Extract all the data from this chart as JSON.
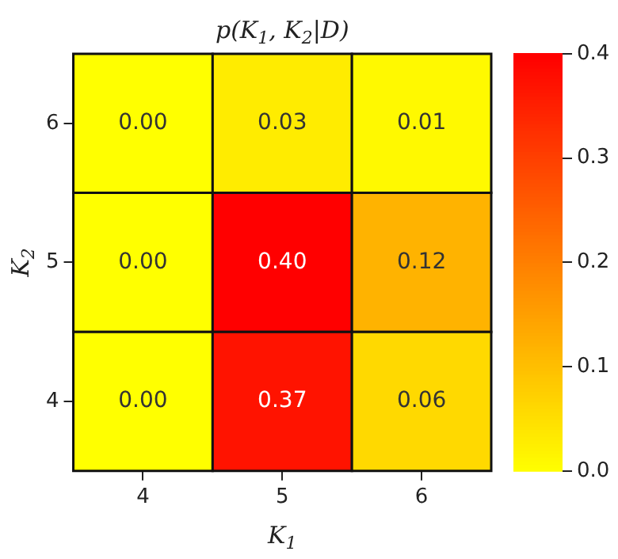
{
  "chart_data": {
    "type": "heatmap",
    "title": "p(K$_{1}$, K$_{2}$|D)",
    "xlabel": "K$_{1}$",
    "ylabel": "K$_{2}$",
    "categories": [
      "4",
      "5",
      "6"
    ],
    "y_categories": [
      "6",
      "5",
      "4"
    ],
    "cells": [
      [
        0,
        0.03,
        0.01
      ],
      [
        0,
        0.4,
        0.12
      ],
      [
        0,
        0.37,
        0.06
      ]
    ],
    "cell_labels": [
      [
        "0.00",
        "0.03",
        "0.01"
      ],
      [
        "0.00",
        "0.40",
        "0.12"
      ],
      [
        "0.00",
        "0.37",
        "0.06"
      ]
    ],
    "clim": [
      0,
      0.4
    ],
    "cticks": [
      {
        "value": 0,
        "label": "0.0"
      },
      {
        "value": 0.1,
        "label": "0.1"
      },
      {
        "value": 0.2,
        "label": "0.2"
      },
      {
        "value": 0.3,
        "label": "0.3"
      },
      {
        "value": 0.4,
        "label": "0.4"
      }
    ]
  }
}
